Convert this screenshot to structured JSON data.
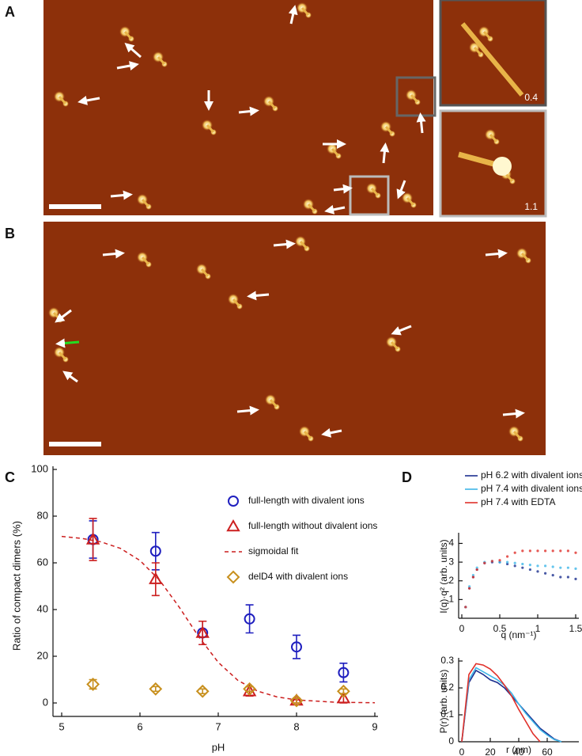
{
  "panel_labels": [
    "A",
    "B",
    "C",
    "D"
  ],
  "insets": [
    "0.4",
    "1.1"
  ],
  "chart_data": [
    {
      "type": "scatter",
      "x_label": "pH",
      "y_label": "Ratio of compact dimers (%)",
      "xlim": [
        5,
        9
      ],
      "ylim": [
        0,
        100
      ],
      "xticks": [
        5,
        6,
        7,
        8,
        9
      ],
      "yticks": [
        0,
        20,
        40,
        60,
        80,
        100
      ],
      "legend": "top right",
      "x": [
        5.4,
        6.2,
        6.8,
        7.4,
        8,
        8.6
      ],
      "series": [
        {
          "name": "full-length with divalent ions",
          "color": "#1f1fbf",
          "marker": "circle",
          "values": [
            70,
            65,
            30,
            36,
            24,
            13
          ],
          "errors": [
            8,
            8,
            5,
            6,
            5,
            4
          ]
        },
        {
          "name": "full-length without divalent ions",
          "color": "#cc1f1f",
          "marker": "triangle",
          "values": [
            70,
            53,
            30,
            5,
            1,
            2
          ],
          "errors": [
            9,
            7,
            5,
            2,
            1,
            2
          ]
        },
        {
          "name": "sigmoidal fit",
          "color": "#cc1f1f",
          "marker": "none",
          "dash": true,
          "x": [
            5,
            5.25,
            5.5,
            5.75,
            6,
            6.25,
            6.5,
            6.75,
            7,
            7.25,
            7.5,
            7.75,
            8,
            8.5,
            9
          ],
          "values": [
            71.3,
            70.5,
            69.0,
            66.2,
            61.0,
            52.6,
            41.1,
            28.4,
            17.4,
            9.7,
            5.1,
            2.6,
            1.3,
            0.3,
            0.1
          ]
        },
        {
          "name": "delD4 with divalent ions",
          "color": "#c8901e",
          "marker": "diamond",
          "values": [
            8,
            6,
            5,
            6,
            1,
            5
          ],
          "errors": [
            2,
            1,
            1,
            1,
            1,
            1
          ]
        }
      ]
    },
    {
      "type": "scatter",
      "x_label": "q (nm⁻¹)",
      "y_label": "I(q)·q² (arb. units)",
      "xlim": [
        0,
        1.5
      ],
      "ylim": [
        0,
        4.4
      ],
      "xticks": [
        0,
        0.5,
        1,
        1.5
      ],
      "yticks": [
        1,
        2,
        3,
        4
      ],
      "legend": "top",
      "x": [
        0.05,
        0.1,
        0.15,
        0.2,
        0.3,
        0.4,
        0.5,
        0.6,
        0.7,
        0.8,
        0.9,
        1.0,
        1.1,
        1.2,
        1.3,
        1.4,
        1.5
      ],
      "series": [
        {
          "name": "pH 6.2 with divalent ions",
          "color": "#1c2f8f",
          "marker": "dot",
          "values": [
            0.6,
            1.6,
            2.2,
            2.6,
            2.95,
            3.0,
            3.0,
            2.9,
            2.8,
            2.7,
            2.6,
            2.5,
            2.4,
            2.3,
            2.2,
            2.2,
            2.1
          ]
        },
        {
          "name": "pH 7.4 with divalent ions",
          "color": "#3fb6e8",
          "marker": "dot",
          "values": [
            0.6,
            1.7,
            2.3,
            2.7,
            3.0,
            3.05,
            3.0,
            3.0,
            2.95,
            2.9,
            2.85,
            2.8,
            2.8,
            2.75,
            2.7,
            2.7,
            2.65
          ]
        },
        {
          "name": "pH 7.4 with EDTA",
          "color": "#e0302a",
          "marker": "dot",
          "values": [
            0.6,
            1.6,
            2.2,
            2.6,
            2.95,
            3.05,
            3.1,
            3.3,
            3.5,
            3.6,
            3.6,
            3.6,
            3.6,
            3.6,
            3.6,
            3.6,
            3.5
          ]
        }
      ]
    },
    {
      "type": "line",
      "x_label": "r (nm)",
      "y_label": "P(r) (arb. units)",
      "xlim": [
        0,
        80
      ],
      "ylim": [
        0,
        0.3
      ],
      "xticks": [
        0,
        20,
        40,
        60
      ],
      "yticks": [
        0,
        0.1,
        0.2,
        0.3
      ],
      "x": [
        0,
        5,
        10,
        15,
        20,
        25,
        30,
        35,
        40,
        45,
        50,
        55,
        60,
        65,
        70
      ],
      "series": [
        {
          "color": "#1c2f8f",
          "values": [
            0,
            0.22,
            0.265,
            0.25,
            0.23,
            0.22,
            0.2,
            0.17,
            0.14,
            0.11,
            0.08,
            0.05,
            0.03,
            0.01,
            0
          ]
        },
        {
          "color": "#3fb6e8",
          "values": [
            0,
            0.23,
            0.275,
            0.26,
            0.245,
            0.23,
            0.21,
            0.18,
            0.14,
            0.105,
            0.075,
            0.045,
            0.025,
            0.008,
            0
          ]
        },
        {
          "color": "#e0302a",
          "values": [
            0,
            0.25,
            0.29,
            0.285,
            0.27,
            0.245,
            0.21,
            0.17,
            0.12,
            0.075,
            0.03,
            0,
            null,
            null,
            null
          ]
        }
      ]
    }
  ]
}
